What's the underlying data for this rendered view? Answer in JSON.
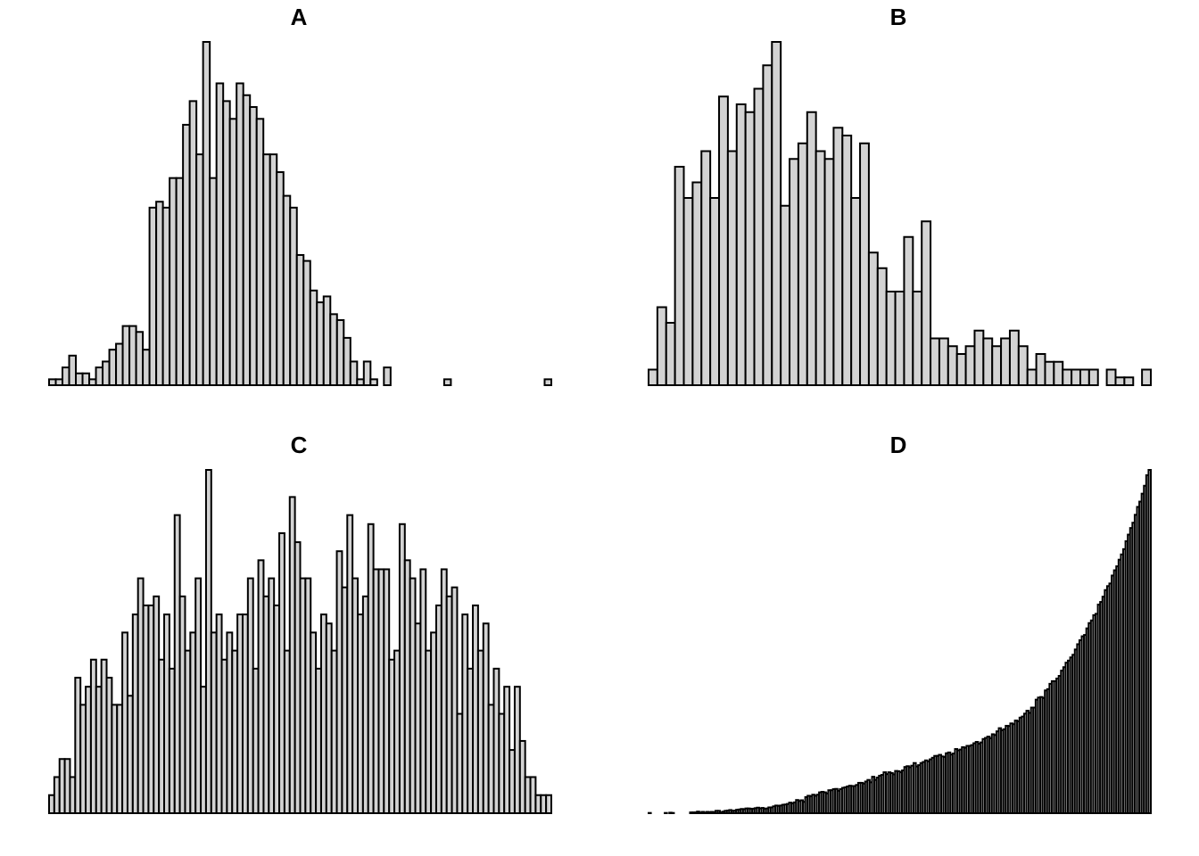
{
  "style": {
    "bar_fill": "#d3d3d3",
    "bar_stroke": "#000000",
    "background": "#ffffff"
  },
  "chart_data": [
    {
      "type": "bar",
      "title": "A",
      "axes": false,
      "values": [
        1,
        1,
        3,
        5,
        2,
        2,
        1,
        3,
        4,
        6,
        7,
        10,
        10,
        9,
        6,
        30,
        31,
        30,
        35,
        35,
        44,
        48,
        39,
        58,
        35,
        51,
        48,
        45,
        51,
        49,
        47,
        45,
        39,
        39,
        36,
        32,
        30,
        22,
        21,
        16,
        14,
        15,
        12,
        11,
        8,
        4,
        1,
        4,
        1,
        0,
        3,
        0,
        0,
        0,
        0,
        0,
        0,
        0,
        0,
        1,
        0,
        0,
        0,
        0,
        0,
        0,
        0,
        0,
        0,
        0,
        0,
        0,
        0,
        0,
        1
      ]
    },
    {
      "type": "bar",
      "title": "B",
      "values": [
        2,
        10,
        8,
        28,
        24,
        26,
        30,
        24,
        37,
        30,
        36,
        35,
        38,
        41,
        44,
        23,
        29,
        31,
        35,
        30,
        29,
        33,
        32,
        24,
        31,
        17,
        15,
        12,
        12,
        19,
        12,
        21,
        6,
        6,
        5,
        4,
        5,
        7,
        6,
        5,
        6,
        7,
        5,
        2,
        4,
        3,
        3,
        2,
        2,
        2,
        2,
        0,
        2,
        1,
        1,
        0,
        2
      ]
    },
    {
      "type": "bar",
      "title": "C",
      "values": [
        2,
        4,
        6,
        6,
        4,
        15,
        12,
        14,
        17,
        14,
        17,
        15,
        12,
        12,
        20,
        13,
        22,
        26,
        23,
        23,
        24,
        17,
        22,
        16,
        33,
        24,
        18,
        20,
        26,
        14,
        38,
        20,
        22,
        17,
        20,
        18,
        22,
        22,
        26,
        16,
        28,
        24,
        26,
        23,
        31,
        18,
        35,
        30,
        26,
        26,
        20,
        16,
        22,
        21,
        18,
        29,
        25,
        33,
        26,
        22,
        24,
        32,
        27,
        27,
        27,
        17,
        18,
        32,
        28,
        26,
        21,
        27,
        18,
        20,
        23,
        27,
        24,
        25,
        11,
        22,
        16,
        23,
        18,
        21,
        12,
        16,
        11,
        14,
        7,
        14,
        8,
        4,
        4,
        2,
        2,
        2
      ]
    },
    {
      "type": "bar",
      "title": "D",
      "values": [
        1,
        0,
        0,
        0,
        0,
        0,
        0,
        1,
        0,
        2,
        1,
        0,
        0,
        0,
        0,
        0,
        0,
        0,
        3,
        3,
        3,
        6,
        2,
        5,
        2,
        5,
        4,
        5,
        4,
        9,
        9,
        3,
        6,
        9,
        10,
        12,
        9,
        10,
        13,
        14,
        16,
        15,
        18,
        18,
        17,
        17,
        19,
        21,
        18,
        20,
        17,
        18,
        22,
        22,
        26,
        29,
        28,
        29,
        32,
        33,
        35,
        40,
        37,
        41,
        50,
        46,
        49,
        43,
        61,
        66,
        64,
        70,
        66,
        70,
        79,
        81,
        79,
        75,
        87,
        87,
        91,
        92,
        85,
        91,
        96,
        98,
        101,
        104,
        103,
        103,
        107,
        115,
        115,
        112,
        120,
        126,
        117,
        138,
        126,
        135,
        142,
        145,
        155,
        148,
        155,
        152,
        147,
        160,
        159,
        155,
        162,
        175,
        178,
        174,
        180,
        190,
        177,
        182,
        190,
        194,
        200,
        196,
        204,
        210,
        217,
        217,
        221,
        215,
        213,
        227,
        230,
        222,
        226,
        243,
        238,
        241,
        250,
        248,
        255,
        255,
        258,
        265,
        270,
        263,
        268,
        281,
        285,
        290,
        284,
        299,
        296,
        310,
        322,
        314,
        318,
        331,
        330,
        340,
        337,
        351,
        348,
        362,
        366,
        377,
        388,
        380,
        400,
        400,
        430,
        438,
        440,
        436,
        465,
        470,
        490,
        500,
        500,
        510,
        520,
        540,
        553,
        570,
        578,
        590,
        600,
        620,
        640,
        655,
        670,
        675,
        700,
        720,
        730,
        750,
        755,
        790,
        800,
        820,
        845,
        860,
        870,
        900,
        920,
        935,
        960,
        980,
        1000,
        1030,
        1055,
        1080,
        1100,
        1130,
        1160,
        1180,
        1210,
        1240,
        1280,
        1300
      ]
    }
  ]
}
